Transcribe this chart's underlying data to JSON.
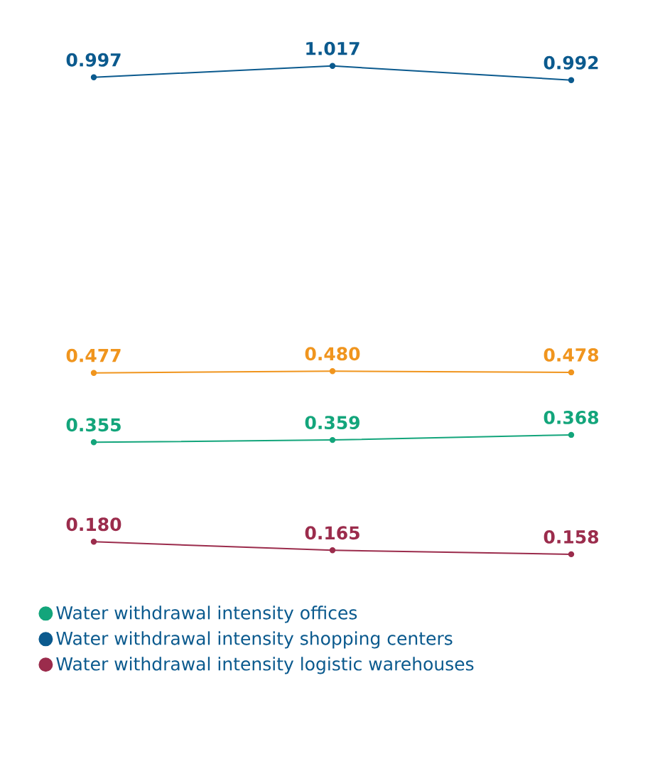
{
  "chart_data": {
    "type": "line",
    "categories": [
      null,
      null,
      null
    ],
    "marker": "circle",
    "legend": "bottom left",
    "series": [
      {
        "name": "Water withdrawal intensity offices",
        "color": "#13a57b",
        "values": [
          0.355,
          0.359,
          0.368
        ],
        "value_labels": [
          "0.355",
          "0.359",
          "0.368"
        ]
      },
      {
        "name": "Water withdrawal intensity shopping centers",
        "color": "#0b5a8e",
        "values": [
          0.997,
          1.017,
          0.992
        ],
        "value_labels": [
          "0.997",
          "1.017",
          "0.992"
        ]
      },
      {
        "name": "Water withdrawal intensity logistic warehouses",
        "color": "#9b2c4c",
        "values": [
          0.18,
          0.165,
          0.158
        ],
        "value_labels": [
          "0.180",
          "0.165",
          "0.158"
        ]
      },
      {
        "color": "#f0951e",
        "values": [
          0.477,
          0.48,
          0.478
        ],
        "value_labels": [
          "0.477",
          "0.480",
          "0.478"
        ]
      }
    ]
  }
}
